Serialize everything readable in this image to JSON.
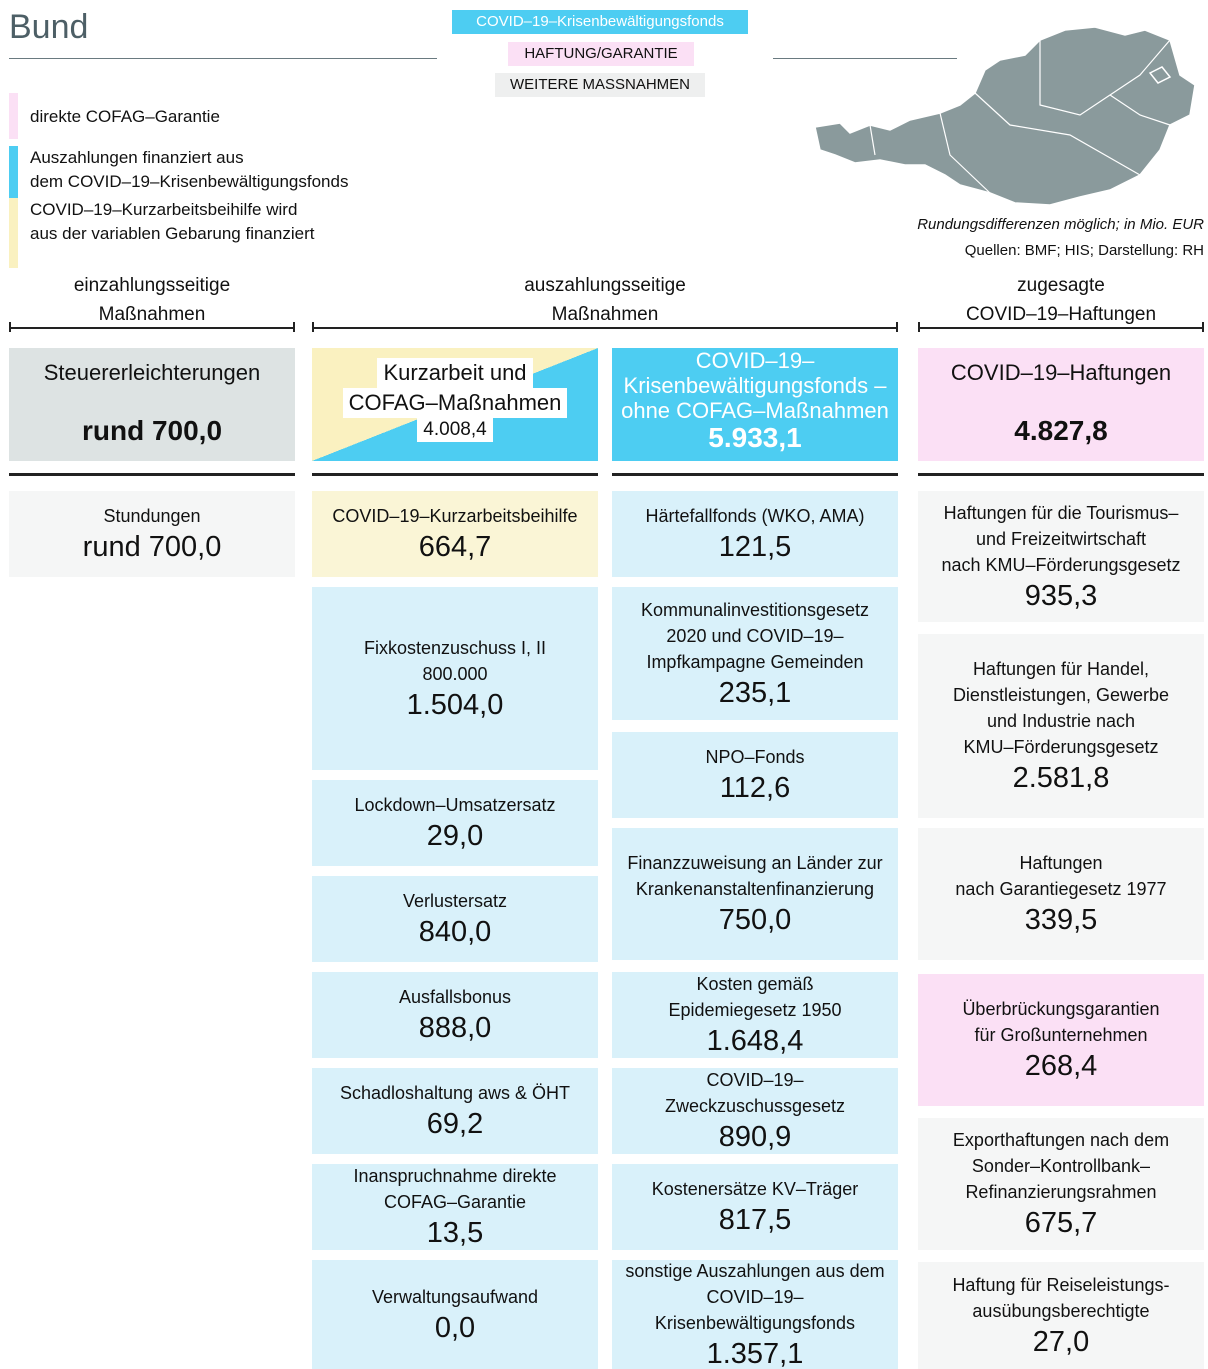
{
  "header": {
    "title": "Bund",
    "badges": [
      "COVID–19–Krisenbewältigungsfonds",
      "HAFTUNG/GARANTIE",
      "WEITERE MASSNAHMEN"
    ]
  },
  "legend": [
    {
      "color": "#fbe0f5",
      "lines": [
        "direkte COFAG–Garantie"
      ]
    },
    {
      "color": "#4dcdf2",
      "lines": [
        "Auszahlungen finanziert aus",
        "dem COVID–19–Krisenbewältigungsfonds"
      ]
    },
    {
      "color": "#faf1c0",
      "lines": [
        "COVID–19–Kurzarbeitsbeihilfe wird",
        "aus der variablen Gebarung finanziert"
      ]
    }
  ],
  "notes": [
    "Rundungsdifferenzen möglich; in Mio. EUR",
    "Quellen: BMF; HIS; Darstellung: RH"
  ],
  "sections": [
    {
      "lines": [
        "einzahlungsseitige",
        "Maßnahmen"
      ]
    },
    {
      "lines": [
        "auszahlungsseitige",
        "Maßnahmen"
      ]
    },
    {
      "lines": [
        "zugesagte",
        "COVID–19–Haftungen"
      ]
    }
  ],
  "summary": [
    {
      "lines": [
        "Steuererleichterungen"
      ],
      "value": "rund 700,0",
      "color": "#dde3e3"
    },
    {
      "lines": [
        "Kurzarbeit und",
        "COFAG–Maßnahmen"
      ],
      "value": "4.008,4",
      "color": "split"
    },
    {
      "lines": [
        "COVID–19–",
        "Krisenbewältigungsfonds –",
        "ohne COFAG–Maßnahmen"
      ],
      "value": "5.933,1",
      "color": "#4dcdf2"
    },
    {
      "lines": [
        "COVID–19–Haftungen"
      ],
      "value": "4.827,8",
      "color": "#fbe0f5"
    }
  ],
  "columns": [
    {
      "color": "#f5f6f6",
      "items": [
        {
          "lines": [
            "Stundungen"
          ],
          "value": "rund 700,0"
        }
      ]
    },
    {
      "color": "#d9f1fa",
      "items": [
        {
          "lines": [
            "COVID–19–Kurzarbeitsbeihilfe"
          ],
          "value": "664,7",
          "color": "#faf5d6"
        },
        {
          "lines": [
            "Fixkostenzuschuss I, II",
            "800.000"
          ],
          "value": "1.504,0"
        },
        {
          "lines": [
            "Lockdown–Umsatzersatz"
          ],
          "value": "29,0"
        },
        {
          "lines": [
            "Verlustersatz"
          ],
          "value": "840,0"
        },
        {
          "lines": [
            "Ausfallsbonus"
          ],
          "value": "888,0"
        },
        {
          "lines": [
            "Schadloshaltung aws & ÖHT"
          ],
          "value": "69,2"
        },
        {
          "lines": [
            "Inanspruchnahme direkte",
            "COFAG–Garantie"
          ],
          "value": "13,5"
        },
        {
          "lines": [
            "Verwaltungsaufwand"
          ],
          "value": "0,0"
        }
      ]
    },
    {
      "color": "#d9f1fa",
      "items": [
        {
          "lines": [
            "Härtefallfonds (WKO, AMA)"
          ],
          "value": "121,5"
        },
        {
          "lines": [
            "Kommunalinvestitionsgesetz",
            "2020 und COVID–19–",
            "Impfkampagne Gemeinden"
          ],
          "value": "235,1"
        },
        {
          "lines": [
            "NPO–Fonds"
          ],
          "value": "112,6"
        },
        {
          "lines": [
            "Finanzzuweisung an Länder zur",
            "Krankenanstaltenfinanzierung"
          ],
          "value": "750,0"
        },
        {
          "lines": [
            "Kosten gemäß",
            "Epidemiegesetz 1950"
          ],
          "value": "1.648,4"
        },
        {
          "lines": [
            "COVID–19–",
            "Zweckzuschussgesetz"
          ],
          "value": "890,9"
        },
        {
          "lines": [
            "Kostenersätze KV–Träger"
          ],
          "value": "817,5"
        },
        {
          "lines": [
            "sonstige Auszahlungen aus dem",
            "COVID–19–",
            "Krisenbewältigungsfonds"
          ],
          "value": "1.357,1"
        }
      ]
    },
    {
      "color": "#f5f6f6",
      "items": [
        {
          "lines": [
            "Haftungen für die Tourismus–",
            "und Freizeitwirtschaft",
            "nach KMU–Förderungsgesetz"
          ],
          "value": "935,3"
        },
        {
          "lines": [
            "Haftungen für Handel,",
            "Dienstleistungen, Gewerbe",
            "und Industrie nach",
            "KMU–Förderungsgesetz"
          ],
          "value": "2.581,8"
        },
        {
          "lines": [
            "Haftungen",
            "nach Garantiegesetz 1977"
          ],
          "value": "339,5"
        },
        {
          "lines": [
            "Überbrückungsgarantien",
            "für Großunternehmen"
          ],
          "value": "268,4",
          "color": "#fbe0f5"
        },
        {
          "lines": [
            "Exporthaftungen nach dem",
            "Sonder–Kontrollbank–",
            "Refinanzierungsrahmen"
          ],
          "value": "675,7"
        },
        {
          "lines": [
            "Haftung für Reiseleistungs-",
            "ausübungsberechtigte"
          ],
          "value": "27,0"
        }
      ]
    }
  ]
}
